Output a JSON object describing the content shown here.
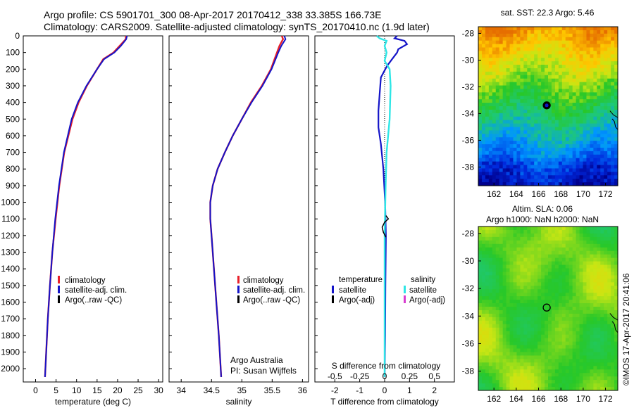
{
  "header": {
    "line1": "Argo profile: CS 5901701_300 08-Apr-2017 20170412_338 33.385S 166.73E",
    "line2": "Climatology: CARS2009. Satellite-adjusted climatology: synTS_20170410.nc (1.9d later)"
  },
  "colors": {
    "climatology": "#e8202a",
    "satellite": "#1414c8",
    "argo": "#000000",
    "satellite_s": "#2ee6e6",
    "argo_s": "#d83cd0"
  },
  "chart_data": [
    {
      "type": "line",
      "name": "temperature",
      "xlabel": "temperature (deg C)",
      "ylabel": "",
      "xlim": [
        -3,
        31
      ],
      "ylim": [
        2080,
        0
      ],
      "xticks": [
        0,
        5,
        10,
        15,
        20,
        25,
        30
      ],
      "yticks": [
        0,
        100,
        200,
        300,
        400,
        500,
        600,
        700,
        800,
        900,
        1000,
        1100,
        1200,
        1300,
        1400,
        1500,
        1600,
        1700,
        1800,
        1900,
        2000
      ],
      "legend": [
        "climatology",
        "satellite-adj. clim.",
        "Argo(..raw -QC)"
      ],
      "series": [
        {
          "name": "climatology",
          "depth": [
            0,
            20,
            60,
            100,
            140,
            200,
            300,
            400,
            500,
            700,
            900,
            1100,
            1300,
            1500,
            1700,
            1900,
            2050
          ],
          "values": [
            22.0,
            22.0,
            20.5,
            19.0,
            16.5,
            15.0,
            12.5,
            10.5,
            9.0,
            7.0,
            5.8,
            4.9,
            4.1,
            3.5,
            3.0,
            2.6,
            2.3
          ]
        },
        {
          "name": "satellite-adj. clim.",
          "depth": [
            0,
            20,
            60,
            100,
            140,
            200,
            300,
            400,
            500,
            700,
            900,
            1100,
            1300,
            1500,
            1700,
            1900,
            2050
          ],
          "values": [
            22.3,
            22.1,
            20.8,
            19.2,
            16.7,
            15.0,
            12.4,
            10.3,
            8.8,
            6.9,
            5.7,
            4.8,
            4.1,
            3.5,
            3.0,
            2.6,
            2.3
          ]
        }
      ]
    },
    {
      "type": "line",
      "name": "salinity",
      "xlabel": "salinity",
      "xlim": [
        33.8,
        36.1
      ],
      "ylim": [
        2080,
        0
      ],
      "xticks": [
        34,
        34.5,
        35,
        35.5,
        36
      ],
      "legend": [
        "climatology",
        "satellite-adj. clim.",
        "Argo(..raw -QC)"
      ],
      "series": [
        {
          "name": "climatology",
          "depth": [
            0,
            20,
            60,
            100,
            200,
            300,
            400,
            500,
            600,
            700,
            800,
            900,
            1000,
            1100,
            1200,
            1400,
            1600,
            1800,
            2050
          ],
          "values": [
            35.66,
            35.68,
            35.62,
            35.58,
            35.48,
            35.33,
            35.15,
            35.0,
            34.85,
            34.72,
            34.6,
            34.52,
            34.48,
            34.48,
            34.5,
            34.54,
            34.58,
            34.62,
            34.66
          ]
        },
        {
          "name": "satellite-adj. clim.",
          "depth": [
            0,
            20,
            60,
            100,
            200,
            300,
            400,
            500,
            600,
            700,
            800,
            900,
            1000,
            1100,
            1200,
            1400,
            1600,
            1800,
            2050
          ],
          "values": [
            35.7,
            35.72,
            35.65,
            35.6,
            35.49,
            35.34,
            35.16,
            35.0,
            34.85,
            34.72,
            34.6,
            34.52,
            34.48,
            34.48,
            34.5,
            34.54,
            34.58,
            34.62,
            34.66
          ]
        }
      ]
    },
    {
      "type": "line",
      "name": "difference",
      "xlabel": "T difference from climatology",
      "top_xlabel": "S difference from climatology",
      "xlim": [
        -2.8,
        2.8
      ],
      "ylim": [
        2080,
        0
      ],
      "xticks": [
        -2,
        -1,
        0,
        1,
        2
      ],
      "top_ticks": [
        "-0.5",
        "-0.25",
        "0",
        "0.25",
        "0.5"
      ],
      "top_tick_values": [
        -0.5,
        -0.25,
        0,
        0.25,
        0.5
      ],
      "s_scale": 4,
      "legend_t_title": "temperature",
      "legend_s_title": "salinity",
      "legend_t": [
        "satellite",
        "Argo(-adj)"
      ],
      "legend_s": [
        "satellite",
        "Argo(-adj)"
      ],
      "series": [
        {
          "name": "T satellite",
          "depth": [
            0,
            15,
            30,
            50,
            80,
            100,
            140,
            180,
            250,
            350,
            450,
            550,
            650,
            800,
            1000,
            1200,
            1500,
            1800,
            2050
          ],
          "values": [
            0.5,
            0.4,
            0.8,
            0.9,
            0.55,
            0.5,
            0.3,
            0.1,
            -0.15,
            -0.2,
            -0.25,
            -0.25,
            -0.15,
            -0.05,
            0.02,
            0.05,
            0.03,
            0.02,
            0.0
          ]
        },
        {
          "name": "S satellite",
          "depth": [
            0,
            15,
            30,
            60,
            100,
            150,
            200,
            300,
            500,
            700,
            900,
            1200,
            1500,
            1800,
            2050
          ],
          "values": [
            -0.08,
            -0.05,
            0.02,
            0.0,
            0.02,
            0.0,
            0.05,
            0.06,
            0.05,
            0.02,
            0.01,
            0.0,
            0.0,
            0.0,
            0.0
          ]
        },
        {
          "name": "Argo adj",
          "depth": [
            1080,
            1100,
            1120,
            1150,
            1180,
            1210
          ],
          "values": [
            0.05,
            0.15,
            0.0,
            -0.1,
            -0.05,
            0.05
          ]
        }
      ]
    }
  ],
  "diff_notes": {
    "argo": "Argo Australia",
    "pi": "PI: Susan Wijffels"
  },
  "maps": {
    "sst": {
      "title": "sat. SST: 22.3 Argo: 5.46",
      "yticks": [
        "-28",
        "-30",
        "-32",
        "-34",
        "-36",
        "-38"
      ],
      "ytick_values": [
        -28,
        -30,
        -32,
        -34,
        -36,
        -38
      ],
      "xticks": [
        "162",
        "164",
        "166",
        "168",
        "170",
        "172"
      ],
      "xtick_values": [
        162,
        164,
        166,
        168,
        170,
        172
      ],
      "lon_range": [
        160.6,
        173.1
      ],
      "lat_range": [
        -27.5,
        -39.4
      ],
      "argo_point": [
        166.73,
        -33.385
      ]
    },
    "sla": {
      "title1": "Altim. SLA: 0.06",
      "title2": "Argo h1000: NaN h2000: NaN",
      "yticks": [
        "-28",
        "-30",
        "-32",
        "-34",
        "-36",
        "-38"
      ],
      "ytick_values": [
        -28,
        -30,
        -32,
        -34,
        -36,
        -38
      ],
      "xticks": [
        "162",
        "164",
        "166",
        "168",
        "170",
        "172"
      ],
      "xtick_values": [
        162,
        164,
        166,
        168,
        170,
        172
      ],
      "lon_range": [
        160.6,
        173.1
      ],
      "lat_range": [
        -27.5,
        -39.4
      ],
      "argo_point": [
        166.73,
        -33.385
      ]
    }
  },
  "credit": "©IMOS 17-Apr-2017 20:41:06"
}
